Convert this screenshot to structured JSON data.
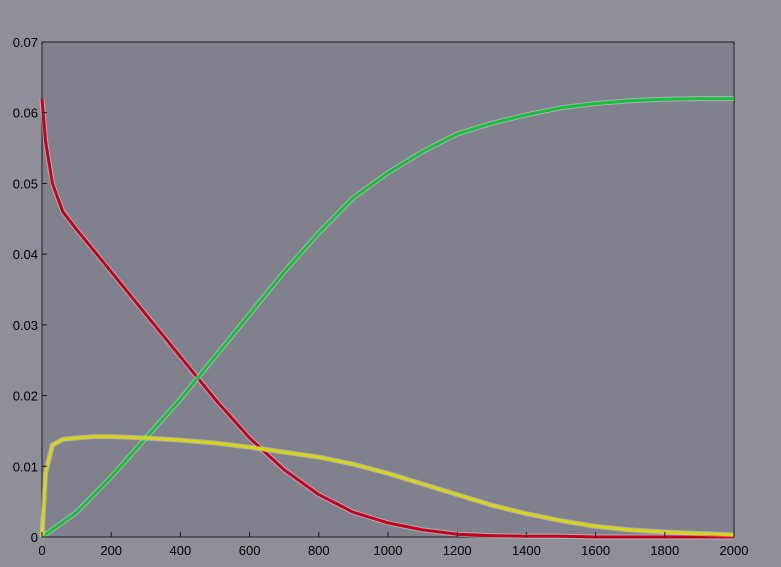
{
  "chart_data": {
    "type": "line",
    "title": "",
    "xlabel": "",
    "ylabel": "",
    "xlim": [
      0,
      2000
    ],
    "ylim": [
      0,
      0.07
    ],
    "x_ticks": [
      0,
      200,
      400,
      600,
      800,
      1000,
      1200,
      1400,
      1600,
      1800,
      2000
    ],
    "x_tick_labels": [
      "0",
      "200",
      "400",
      "600",
      "800",
      "1000",
      "1200",
      "1400",
      "1600",
      "1800",
      "2000"
    ],
    "y_ticks": [
      0,
      0.01,
      0.02,
      0.03,
      0.04,
      0.05,
      0.06,
      0.07
    ],
    "y_tick_labels": [
      "0",
      "0.01",
      "0.02",
      "0.03",
      "0.04",
      "0.05",
      "0.06",
      "0.07"
    ],
    "grid": false,
    "legend": "none",
    "series": [
      {
        "color": "#c8001e",
        "x": [
          0,
          10,
          30,
          60,
          100,
          150,
          200,
          300,
          400,
          500,
          600,
          700,
          800,
          900,
          1000,
          1100,
          1200,
          1300,
          1400,
          1500,
          1600,
          1800,
          2000
        ],
        "y": [
          0.062,
          0.056,
          0.05,
          0.046,
          0.0435,
          0.0405,
          0.0375,
          0.0315,
          0.0255,
          0.0195,
          0.014,
          0.0095,
          0.006,
          0.0035,
          0.002,
          0.001,
          0.0004,
          0.0002,
          0.0001,
          0.0001,
          0,
          0,
          0
        ]
      },
      {
        "color": "#17c23a",
        "x": [
          0,
          100,
          200,
          300,
          400,
          500,
          600,
          700,
          800,
          900,
          1000,
          1100,
          1200,
          1300,
          1400,
          1500,
          1600,
          1700,
          1800,
          1900,
          2000
        ],
        "y": [
          0,
          0.0035,
          0.0085,
          0.014,
          0.0195,
          0.0255,
          0.0315,
          0.0375,
          0.043,
          0.048,
          0.0515,
          0.0545,
          0.057,
          0.0585,
          0.0597,
          0.0607,
          0.0613,
          0.0617,
          0.0619,
          0.062,
          0.062
        ]
      },
      {
        "color": "#d6d613",
        "x": [
          0,
          10,
          30,
          60,
          100,
          150,
          200,
          300,
          400,
          500,
          600,
          700,
          800,
          900,
          1000,
          1100,
          1200,
          1300,
          1400,
          1500,
          1600,
          1700,
          1800,
          1900,
          2000
        ],
        "y": [
          0,
          0.009,
          0.013,
          0.0138,
          0.014,
          0.0142,
          0.0142,
          0.014,
          0.0137,
          0.0133,
          0.0127,
          0.012,
          0.0113,
          0.0103,
          0.009,
          0.0075,
          0.006,
          0.0045,
          0.0033,
          0.0023,
          0.0015,
          0.001,
          0.0007,
          0.0005,
          0.0003
        ]
      }
    ]
  }
}
